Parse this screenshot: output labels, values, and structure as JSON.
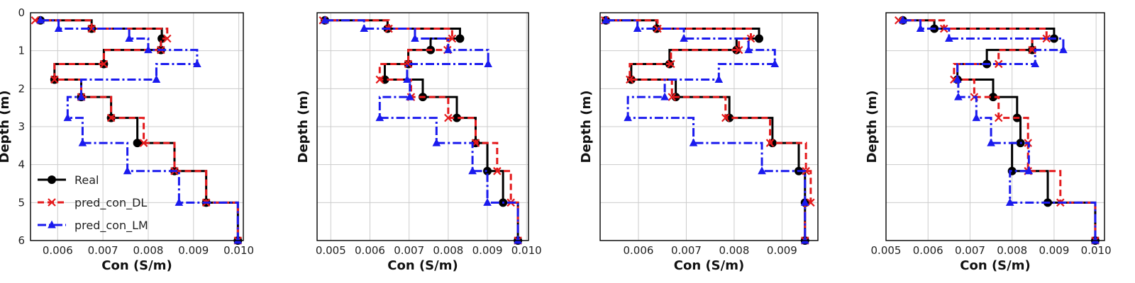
{
  "colors": {
    "real": "#000000",
    "dl": "#e41a1c",
    "lm": "#1a1aee",
    "grid": "#cccccc"
  },
  "chart_data": [
    {
      "type": "line",
      "xlabel": "Con (S/m)",
      "ylabel": "Depth (m)",
      "xlim": [
        0.0054,
        0.0101
      ],
      "ylim": [
        6,
        0
      ],
      "xticks": [
        "0.006",
        "0.007",
        "0.008",
        "0.009",
        "0.010"
      ],
      "yticks": [
        "0",
        "1",
        "2",
        "3",
        "4",
        "5",
        "6"
      ],
      "grid": true,
      "legend": "lower-left",
      "depths": [
        0.2,
        0.42,
        0.68,
        0.98,
        1.35,
        1.76,
        2.22,
        2.77,
        3.43,
        4.17,
        5.0,
        6.0
      ],
      "series": [
        {
          "name": "Real",
          "values": [
            0.00562,
            0.00675,
            0.0083,
            0.00828,
            0.00702,
            0.00593,
            0.00652,
            0.00718,
            0.00776,
            0.00858,
            0.00928,
            0.00998
          ]
        },
        {
          "name": "pred_con_DL",
          "values": [
            0.0055,
            0.00675,
            0.00842,
            0.00828,
            0.00702,
            0.00593,
            0.00652,
            0.00718,
            0.0079,
            0.00858,
            0.00928,
            0.00998
          ]
        },
        {
          "name": "pred_con_LM",
          "values": [
            0.00562,
            0.00602,
            0.00758,
            0.008,
            0.00908,
            0.00818,
            0.00652,
            0.00622,
            0.00655,
            0.00754,
            0.00868,
            0.00998
          ]
        }
      ]
    },
    {
      "type": "line",
      "xlabel": "Con (S/m)",
      "ylabel": "Depth (m)",
      "xlim": [
        0.00465,
        0.01005
      ],
      "ylim": [
        6,
        0
      ],
      "xticks": [
        "0.005",
        "0.006",
        "0.007",
        "0.008",
        "0.009",
        "0.010"
      ],
      "yticks": [],
      "grid": true,
      "depths": [
        0.2,
        0.42,
        0.68,
        0.98,
        1.35,
        1.76,
        2.22,
        2.77,
        3.43,
        4.17,
        5.0,
        6.0
      ],
      "series": [
        {
          "name": "Real",
          "values": [
            0.00485,
            0.00645,
            0.0083,
            0.00755,
            0.00698,
            0.00638,
            0.00735,
            0.00822,
            0.0087,
            0.009,
            0.0094,
            0.00978
          ]
        },
        {
          "name": "pred_con_DL",
          "values": [
            0.0048,
            0.00648,
            0.0081,
            0.00798,
            0.00698,
            0.00625,
            0.00705,
            0.008,
            0.0087,
            0.00925,
            0.0096,
            0.00978
          ]
        },
        {
          "name": "pred_con_LM",
          "values": [
            0.00485,
            0.00585,
            0.00715,
            0.008,
            0.00902,
            0.00695,
            0.00702,
            0.00625,
            0.0077,
            0.00862,
            0.009,
            0.00978
          ]
        }
      ]
    },
    {
      "type": "line",
      "xlabel": "Con (S/m)",
      "ylabel": "Depth (m)",
      "xlim": [
        0.0052,
        0.00975
      ],
      "ylim": [
        6,
        0
      ],
      "xticks": [
        "0.006",
        "0.007",
        "0.008",
        "0.009"
      ],
      "yticks": [],
      "grid": true,
      "depths": [
        0.2,
        0.42,
        0.68,
        0.98,
        1.35,
        1.76,
        2.22,
        2.77,
        3.43,
        4.17,
        5.0,
        6.0
      ],
      "series": [
        {
          "name": "Real",
          "values": [
            0.00532,
            0.00638,
            0.00852,
            0.00805,
            0.00665,
            0.00585,
            0.00678,
            0.0079,
            0.0088,
            0.00935,
            0.00948,
            0.00948
          ]
        },
        {
          "name": "pred_con_DL",
          "values": [
            0.0053,
            0.0064,
            0.00835,
            0.0081,
            0.00668,
            0.00582,
            0.0067,
            0.00782,
            0.00875,
            0.0095,
            0.0096,
            0.00948
          ]
        },
        {
          "name": "pred_con_LM",
          "values": [
            0.00532,
            0.00598,
            0.00695,
            0.0083,
            0.00885,
            0.00768,
            0.00655,
            0.00578,
            0.00715,
            0.00858,
            0.00948,
            0.00948
          ]
        }
      ]
    },
    {
      "type": "line",
      "xlabel": "Con (S/m)",
      "ylabel": "Depth (m)",
      "xlim": [
        0.005,
        0.0102
      ],
      "ylim": [
        6,
        0
      ],
      "xticks": [
        "0.005",
        "0.006",
        "0.007",
        "0.008",
        "0.009",
        "0.010"
      ],
      "yticks": [],
      "grid": true,
      "depths": [
        0.2,
        0.42,
        0.68,
        0.98,
        1.35,
        1.76,
        2.22,
        2.77,
        3.43,
        4.17,
        5.0,
        6.0
      ],
      "series": [
        {
          "name": "Real",
          "values": [
            0.0054,
            0.00615,
            0.009,
            0.00848,
            0.0074,
            0.0067,
            0.00755,
            0.00812,
            0.0082,
            0.008,
            0.00885,
            0.00998
          ]
        },
        {
          "name": "pred_con_DL",
          "values": [
            0.0053,
            0.00638,
            0.00882,
            0.00848,
            0.00768,
            0.00662,
            0.0071,
            0.00768,
            0.00838,
            0.00838,
            0.00915,
            0.00998
          ]
        },
        {
          "name": "pred_con_LM",
          "values": [
            0.0054,
            0.00582,
            0.0065,
            0.00922,
            0.00855,
            0.0067,
            0.00672,
            0.00715,
            0.0075,
            0.0084,
            0.00795,
            0.00998
          ]
        }
      ]
    }
  ]
}
